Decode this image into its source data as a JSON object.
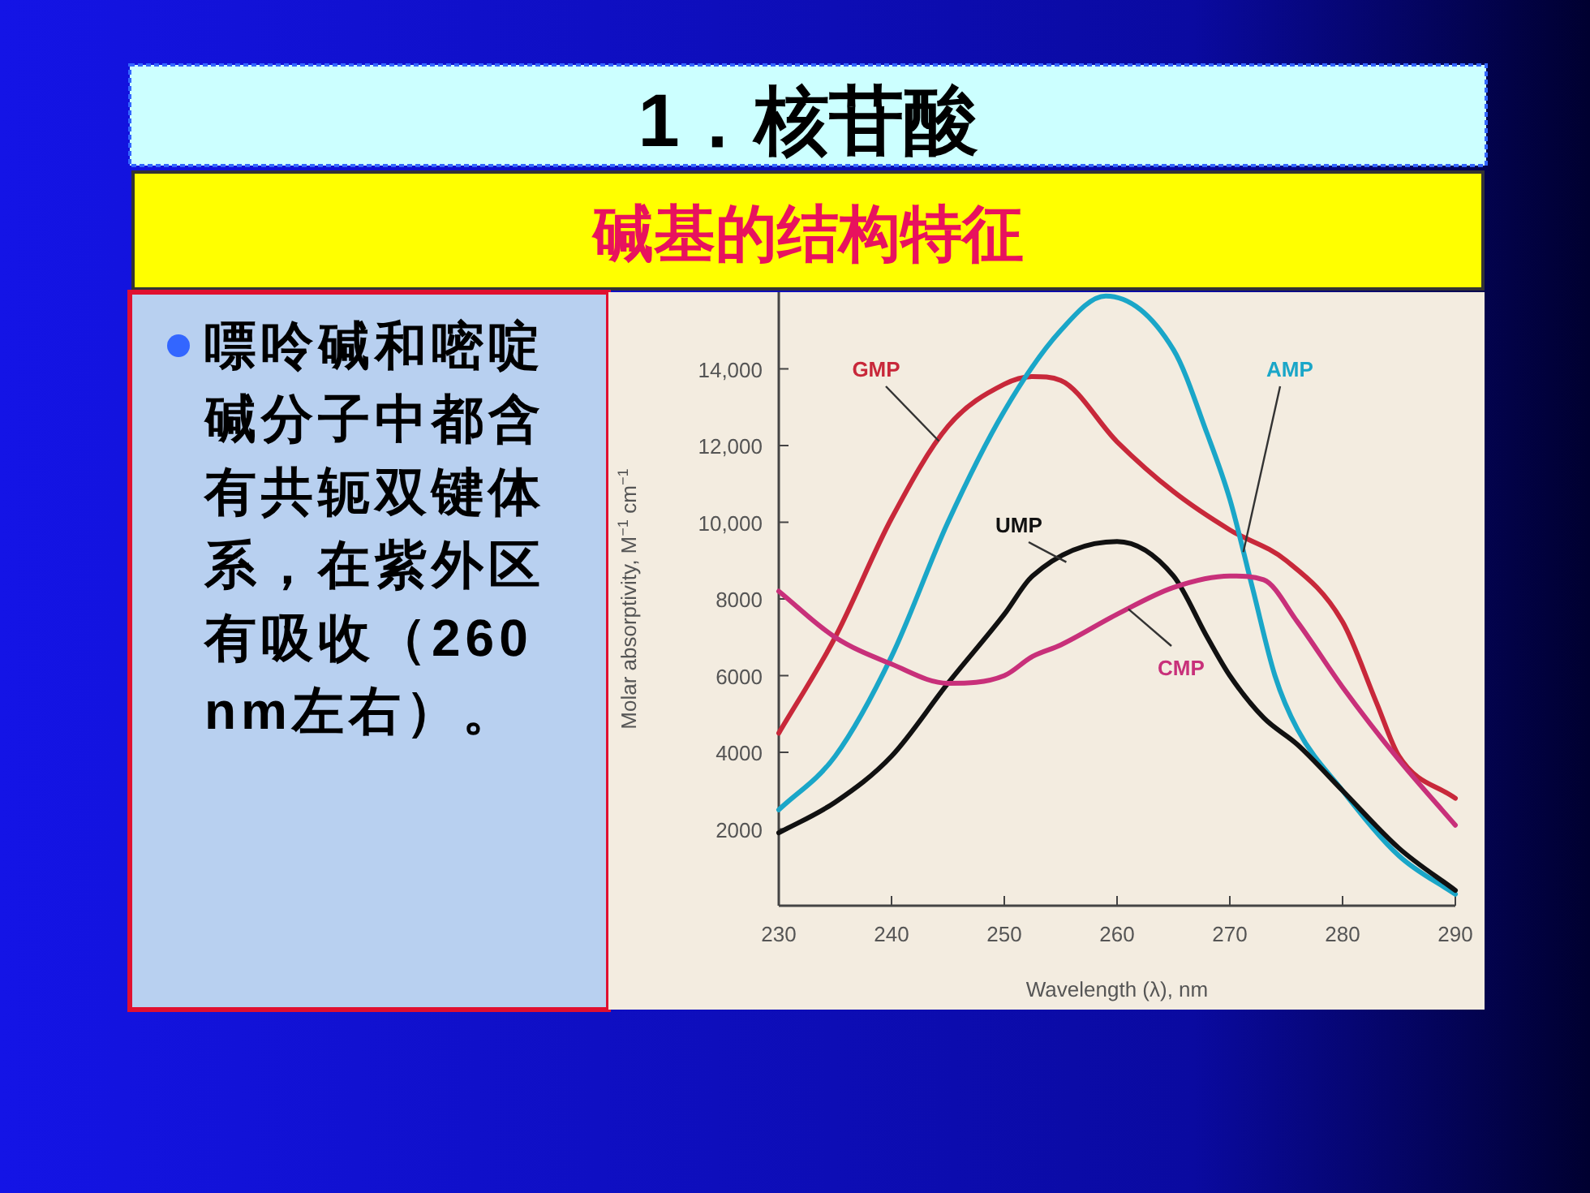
{
  "chart_data": {
    "type": "line",
    "title": "1．核苷酸",
    "subtitle": "碱基的结构特征",
    "annotations": [
      "嘌呤碱和嘧啶碱分子中都含有共轭双键体系，在紫外区有吸收（260 nm左右）。"
    ],
    "xlabel": "Wavelength (λ), nm",
    "ylabel": "Molar absorptivity, M$^{−1}$ cm$^{−1}$",
    "xlim": [
      230,
      290
    ],
    "xticks": [
      230,
      240,
      250,
      260,
      270,
      280,
      290
    ],
    "ylim": [
      0,
      16000
    ],
    "yticks": [
      2000,
      4000,
      6000,
      8000,
      {
        "value": 10000,
        "label": "10,000"
      },
      {
        "value": 12000,
        "label": "12,000"
      },
      {
        "value": 14000,
        "label": "14,000"
      }
    ],
    "grid": false,
    "marker": "none",
    "line_style": "solid",
    "series": [
      {
        "name": "GMP",
        "color": "#c8283a",
        "x": [
          230,
          235,
          240,
          245,
          250,
          252.5,
          255,
          260,
          265,
          270,
          275,
          280,
          283,
          285,
          290
        ],
        "values": [
          4500,
          7000,
          10100,
          12500,
          13600,
          13800,
          13700,
          12100,
          10800,
          9800,
          9000,
          7400,
          5300,
          3900,
          2800
        ]
      },
      {
        "name": "AMP",
        "color": "#1aa6c8",
        "x": [
          230,
          235,
          240,
          245,
          250,
          255,
          259,
          265,
          268,
          270,
          272,
          274,
          276,
          280,
          285,
          290
        ],
        "values": [
          2500,
          3900,
          6500,
          10000,
          12900,
          15000,
          15900,
          14500,
          12300,
          10600,
          8300,
          6000,
          4600,
          3000,
          1300,
          300
        ]
      },
      {
        "name": "UMP",
        "color": "#111111",
        "x": [
          230,
          235,
          240,
          245,
          250,
          252.5,
          260,
          265,
          268,
          270,
          273,
          276,
          280,
          285,
          290
        ],
        "values": [
          1900,
          2700,
          3900,
          5800,
          7600,
          8600,
          9500,
          8600,
          7000,
          6000,
          4900,
          4200,
          3000,
          1500,
          400
        ]
      },
      {
        "name": "CMP",
        "color": "#c8307a",
        "x": [
          230,
          235,
          240,
          245,
          250,
          252.5,
          255,
          260,
          265,
          270,
          273,
          276,
          280,
          285,
          290
        ],
        "values": [
          8200,
          7000,
          6300,
          5800,
          6000,
          6500,
          6800,
          7600,
          8300,
          8600,
          8500,
          7400,
          5700,
          3800,
          2100
        ]
      }
    ]
  }
}
